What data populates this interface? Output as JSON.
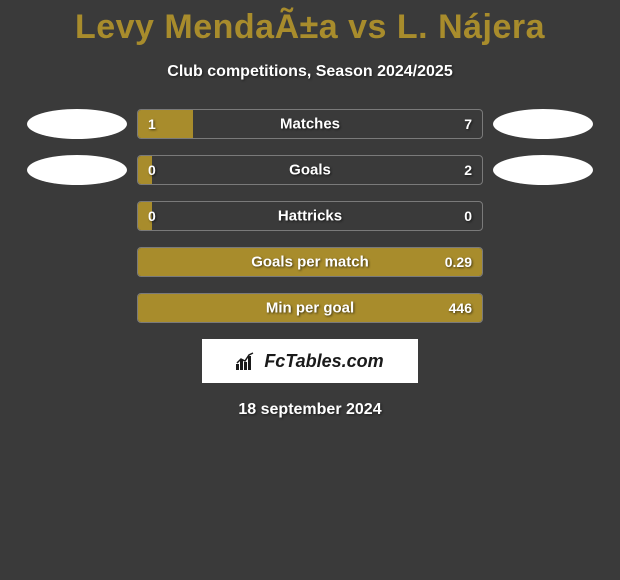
{
  "title": "Levy MendaÃ±a vs L. Nájera",
  "subtitle": "Club competitions, Season 2024/2025",
  "date": "18 september 2024",
  "logo_text": "FcTables.com",
  "colors": {
    "background": "#3a3a3a",
    "accent": "#a88c2c",
    "text": "#ffffff",
    "ellipse": "#ffffff",
    "bar_border": "#7a7a7a"
  },
  "rows": [
    {
      "label": "Matches",
      "left": "1",
      "right": "7",
      "fill_pct": 16,
      "show_ellipses": true
    },
    {
      "label": "Goals",
      "left": "0",
      "right": "2",
      "fill_pct": 4,
      "show_ellipses": true
    },
    {
      "label": "Hattricks",
      "left": "0",
      "right": "0",
      "fill_pct": 4,
      "show_ellipses": false
    },
    {
      "label": "Goals per match",
      "left": "",
      "right": "0.29",
      "fill_pct": 100,
      "show_ellipses": false
    },
    {
      "label": "Min per goal",
      "left": "",
      "right": "446",
      "fill_pct": 100,
      "show_ellipses": false
    }
  ]
}
